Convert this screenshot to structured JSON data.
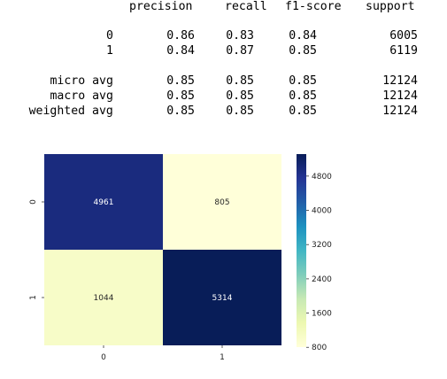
{
  "report": {
    "columns": [
      "precision",
      "recall",
      "f1-score",
      "support"
    ],
    "rows": [
      {
        "label": "0",
        "values": [
          "0.86",
          "0.83",
          "0.84",
          "6005"
        ]
      },
      {
        "label": "1",
        "values": [
          "0.84",
          "0.87",
          "0.85",
          "6119"
        ]
      },
      {
        "label": "micro avg",
        "values": [
          "0.85",
          "0.85",
          "0.85",
          "12124"
        ]
      },
      {
        "label": "macro avg",
        "values": [
          "0.85",
          "0.85",
          "0.85",
          "12124"
        ]
      },
      {
        "label": "weighted avg",
        "values": [
          "0.85",
          "0.85",
          "0.85",
          "12124"
        ]
      }
    ]
  },
  "chart_data": {
    "type": "heatmap",
    "title": "",
    "xlabel": "",
    "ylabel": "",
    "x_categories": [
      "0",
      "1"
    ],
    "y_categories": [
      "0",
      "1"
    ],
    "values": [
      [
        4961,
        805
      ],
      [
        1044,
        5314
      ]
    ],
    "colormap": "YlGnBu",
    "colorbar": {
      "ticks": [
        "800",
        "1600",
        "2400",
        "3200",
        "4000",
        "4800"
      ],
      "range": [
        805,
        5314
      ]
    },
    "colors": {
      "low": "#ffffd9",
      "high": "#081d58"
    }
  }
}
